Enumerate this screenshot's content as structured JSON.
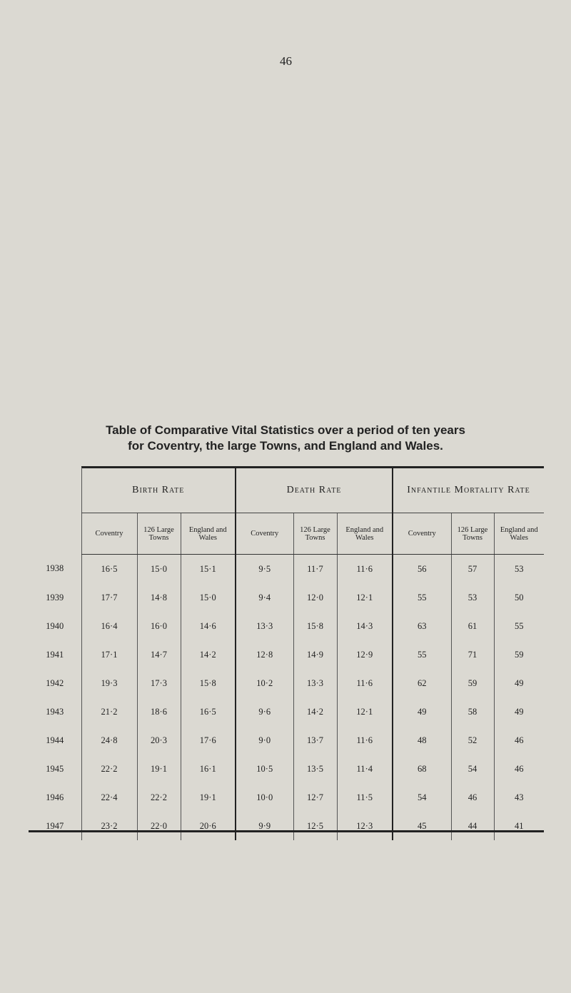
{
  "page_number": "46",
  "title_line1": "Table of Comparative Vital Statistics over a period of ten years",
  "title_line2": "for Coventry, the large Towns, and England and Wales.",
  "groups": [
    "Birth Rate",
    "Death Rate",
    "Infantile Mortality Rate"
  ],
  "subheaders": [
    "Coventry",
    "126 Large Towns",
    "England and Wales",
    "Coventry",
    "126 Large Towns",
    "England and Wales",
    "Coventry",
    "126 Large Towns",
    "England and Wales"
  ],
  "rows": [
    {
      "year": "1938",
      "values": [
        "16·5",
        "15·0",
        "15·1",
        "9·5",
        "11·7",
        "11·6",
        "56",
        "57",
        "53"
      ]
    },
    {
      "year": "1939",
      "values": [
        "17·7",
        "14·8",
        "15·0",
        "9·4",
        "12·0",
        "12·1",
        "55",
        "53",
        "50"
      ]
    },
    {
      "year": "1940",
      "values": [
        "16·4",
        "16·0",
        "14·6",
        "13·3",
        "15·8",
        "14·3",
        "63",
        "61",
        "55"
      ]
    },
    {
      "year": "1941",
      "values": [
        "17·1",
        "14·7",
        "14·2",
        "12·8",
        "14·9",
        "12·9",
        "55",
        "71",
        "59"
      ]
    },
    {
      "year": "1942",
      "values": [
        "19·3",
        "17·3",
        "15·8",
        "10·2",
        "13·3",
        "11·6",
        "62",
        "59",
        "49"
      ]
    },
    {
      "year": "1943",
      "values": [
        "21·2",
        "18·6",
        "16·5",
        "9·6",
        "14·2",
        "12·1",
        "49",
        "58",
        "49"
      ]
    },
    {
      "year": "1944",
      "values": [
        "24·8",
        "20·3",
        "17·6",
        "9·0",
        "13·7",
        "11·6",
        "48",
        "52",
        "46"
      ]
    },
    {
      "year": "1945",
      "values": [
        "22·2",
        "19·1",
        "16·1",
        "10·5",
        "13·5",
        "11·4",
        "68",
        "54",
        "46"
      ]
    },
    {
      "year": "1946",
      "values": [
        "22·4",
        "22·2",
        "19·1",
        "10·0",
        "12·7",
        "11·5",
        "54",
        "46",
        "43"
      ]
    },
    {
      "year": "1947",
      "values": [
        "23·2",
        "22·0",
        "20·6",
        "9·9",
        "12·5",
        "12·3",
        "45",
        "44",
        "41"
      ]
    }
  ]
}
